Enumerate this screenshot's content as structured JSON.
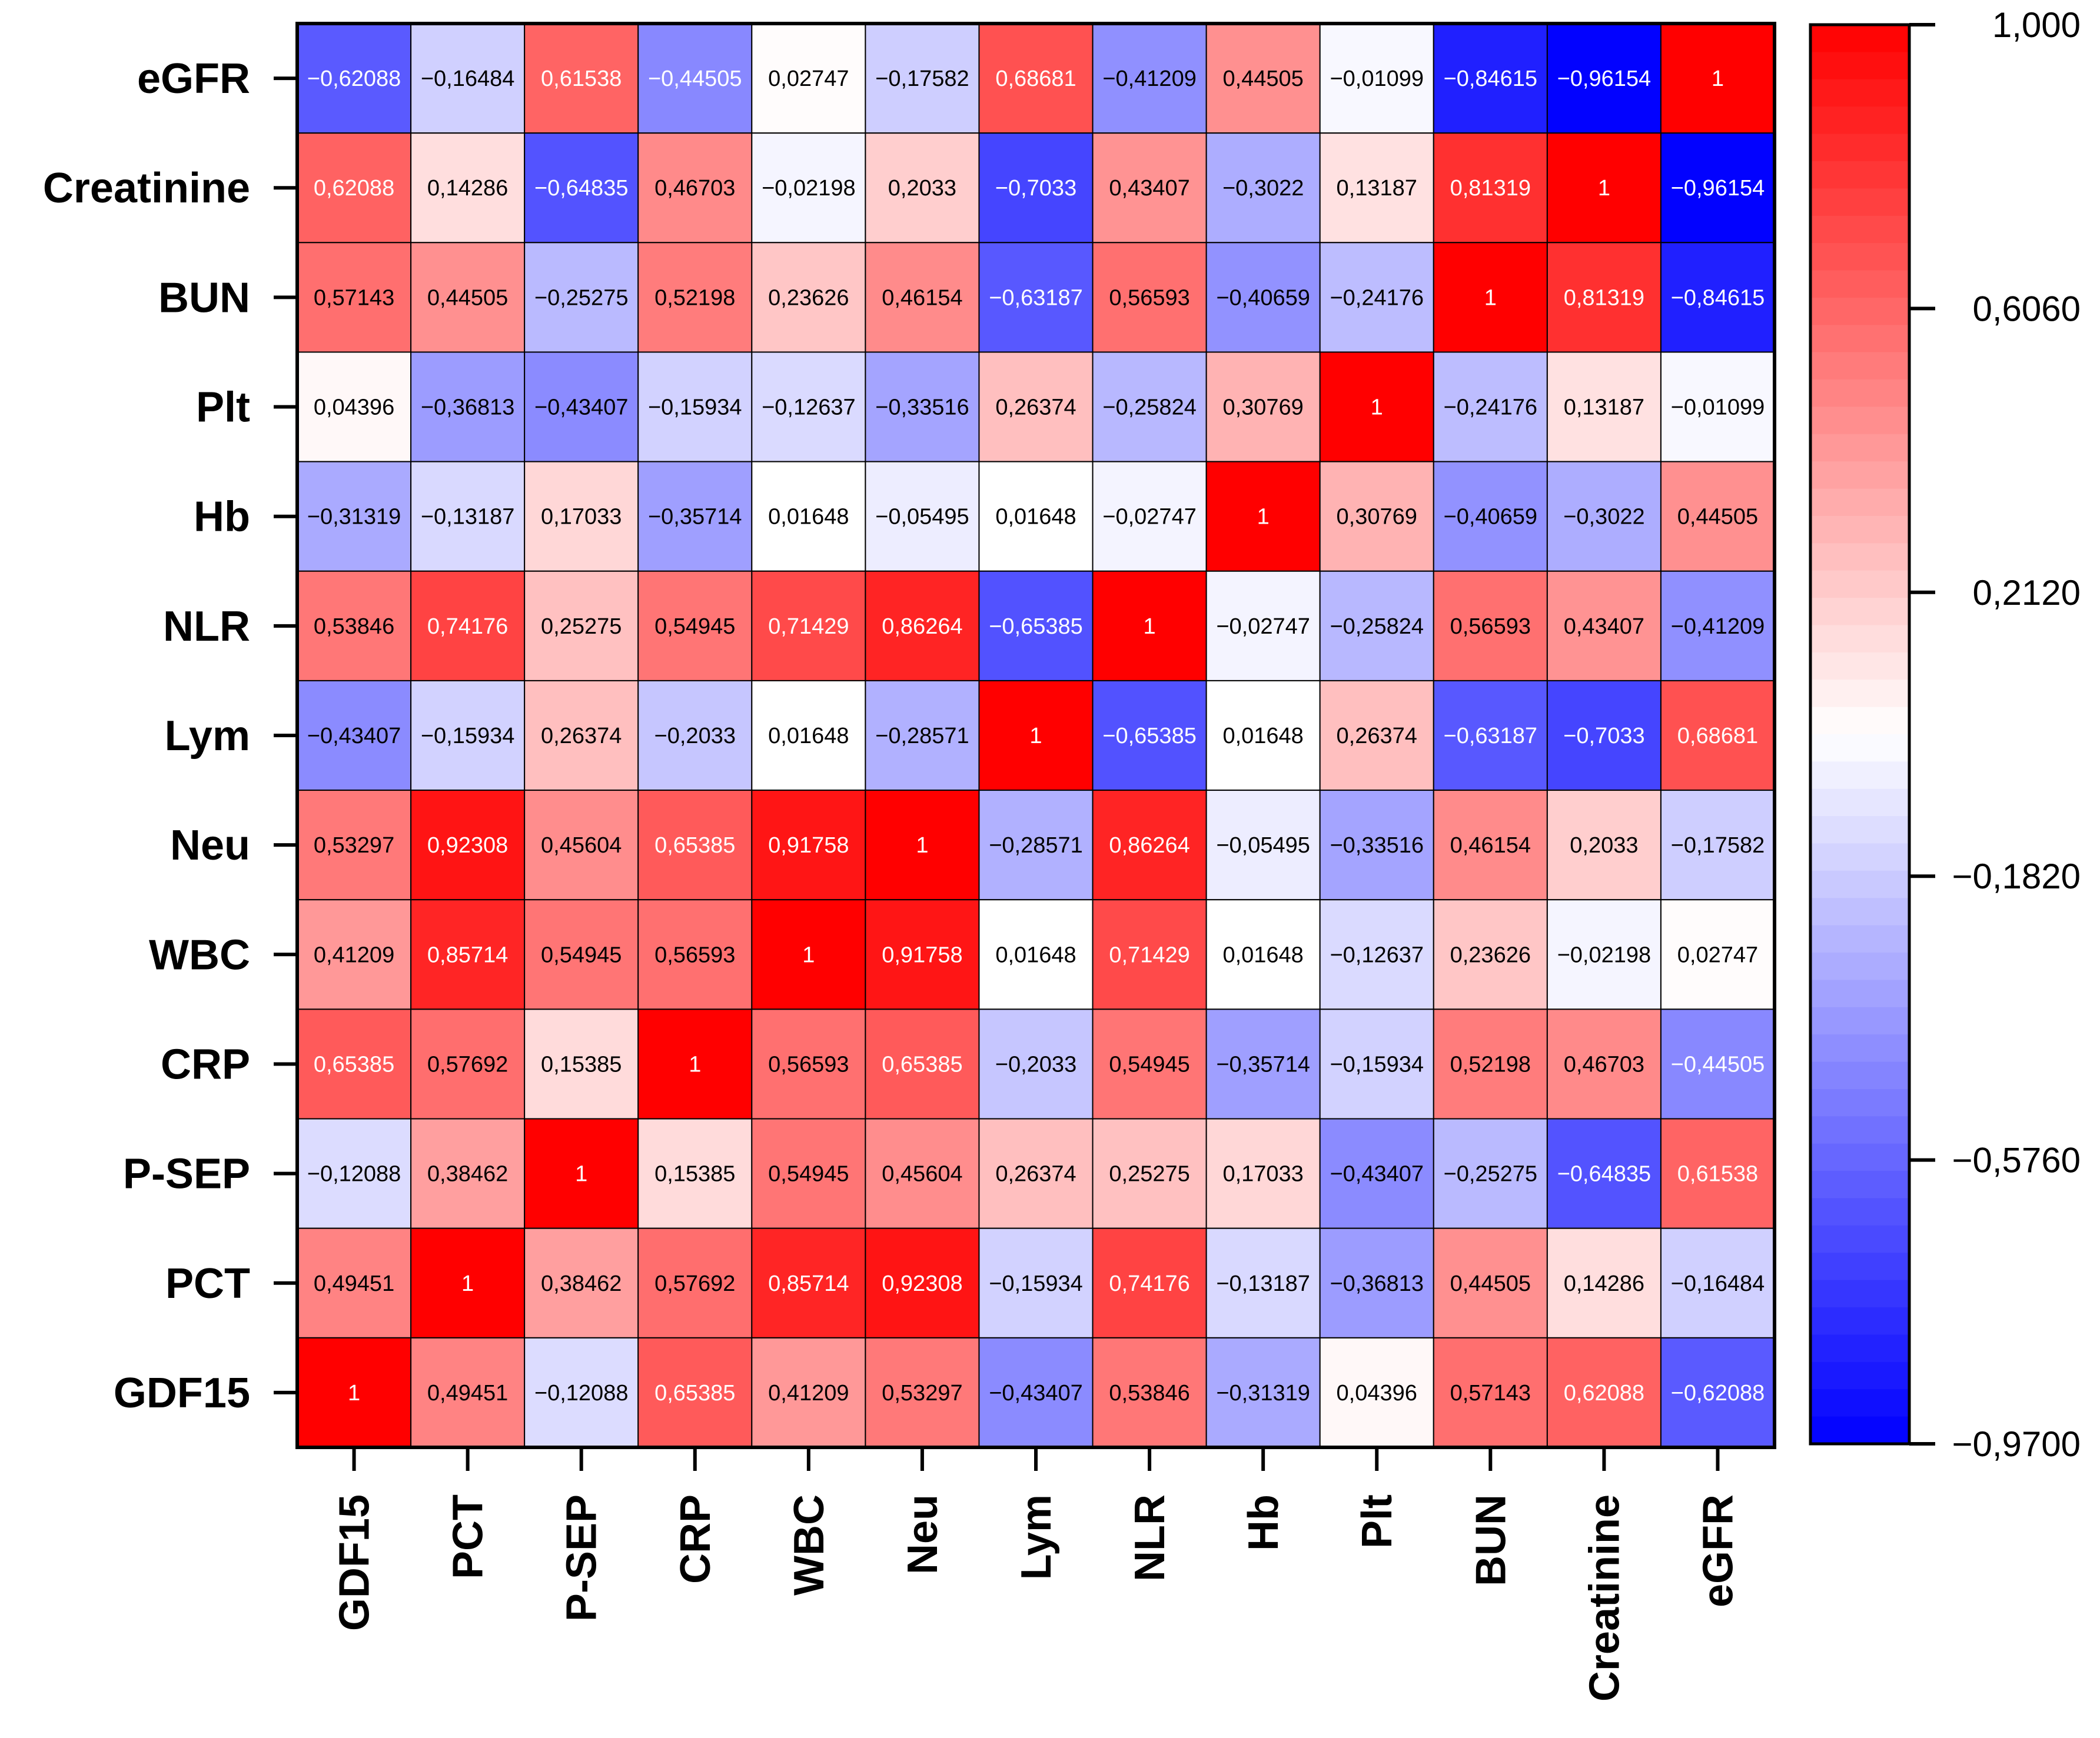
{
  "chart_data": {
    "type": "heatmap",
    "title": "",
    "variables": [
      "GDF15",
      "PCT",
      "P-SEP",
      "CRP",
      "WBC",
      "Neu",
      "Lym",
      "NLR",
      "Hb",
      "Plt",
      "BUN",
      "Creatinine",
      "eGFR"
    ],
    "x_categories": [
      "GDF15",
      "PCT",
      "P-SEP",
      "CRP",
      "WBC",
      "Neu",
      "Lym",
      "NLR",
      "Hb",
      "Plt",
      "BUN",
      "Creatinine",
      "eGFR"
    ],
    "y_categories_top_to_bottom": [
      "eGFR",
      "Creatinine",
      "BUN",
      "Plt",
      "Hb",
      "NLR",
      "Lym",
      "Neu",
      "WBC",
      "CRP",
      "P-SEP",
      "PCT",
      "GDF15"
    ],
    "matrix": [
      [
        "1",
        "0,49451",
        "−0,12088",
        "0,65385",
        "0,41209",
        "0,53297",
        "−0,43407",
        "0,53846",
        "−0,31319",
        "0,04396",
        "0,57143",
        "0,62088",
        "−0,62088"
      ],
      [
        "0,49451",
        "1",
        "0,38462",
        "0,57692",
        "0,85714",
        "0,92308",
        "−0,15934",
        "0,74176",
        "−0,13187",
        "−0,36813",
        "0,44505",
        "0,14286",
        "−0,16484"
      ],
      [
        "−0,12088",
        "0,38462",
        "1",
        "0,15385",
        "0,54945",
        "0,45604",
        "0,26374",
        "0,25275",
        "0,17033",
        "−0,43407",
        "−0,25275",
        "−0,64835",
        "0,61538"
      ],
      [
        "0,65385",
        "0,57692",
        "0,15385",
        "1",
        "0,56593",
        "0,65385",
        "−0,2033",
        "0,54945",
        "−0,35714",
        "−0,15934",
        "0,52198",
        "0,46703",
        "−0,44505"
      ],
      [
        "0,41209",
        "0,85714",
        "0,54945",
        "0,56593",
        "1",
        "0,91758",
        "0,01648",
        "0,71429",
        "0,01648",
        "−0,12637",
        "0,23626",
        "−0,02198",
        "0,02747"
      ],
      [
        "0,53297",
        "0,92308",
        "0,45604",
        "0,65385",
        "0,91758",
        "1",
        "−0,28571",
        "0,86264",
        "−0,05495",
        "−0,33516",
        "0,46154",
        "0,2033",
        "−0,17582"
      ],
      [
        "−0,43407",
        "−0,15934",
        "0,26374",
        "−0,2033",
        "0,01648",
        "−0,28571",
        "1",
        "−0,65385",
        "0,01648",
        "0,26374",
        "−0,63187",
        "−0,7033",
        "0,68681"
      ],
      [
        "0,53846",
        "0,74176",
        "0,25275",
        "0,54945",
        "0,71429",
        "0,86264",
        "−0,65385",
        "1",
        "−0,02747",
        "−0,25824",
        "0,56593",
        "0,43407",
        "−0,41209"
      ],
      [
        "−0,31319",
        "−0,13187",
        "0,17033",
        "−0,35714",
        "0,01648",
        "−0,05495",
        "0,01648",
        "−0,02747",
        "1",
        "0,30769",
        "−0,40659",
        "−0,3022",
        "0,44505"
      ],
      [
        "0,04396",
        "−0,36813",
        "−0,43407",
        "−0,15934",
        "−0,12637",
        "−0,33516",
        "0,26374",
        "−0,25824",
        "0,30769",
        "1",
        "−0,24176",
        "0,13187",
        "−0,01099"
      ],
      [
        "0,57143",
        "0,44505",
        "−0,25275",
        "0,52198",
        "0,23626",
        "0,46154",
        "−0,63187",
        "0,56593",
        "−0,40659",
        "−0,24176",
        "1",
        "0,81319",
        "−0,84615"
      ],
      [
        "0,62088",
        "0,14286",
        "−0,64835",
        "0,46703",
        "−0,02198",
        "0,2033",
        "−0,7033",
        "0,43407",
        "−0,3022",
        "0,13187",
        "0,81319",
        "1",
        "−0,96154"
      ],
      [
        "−0,62088",
        "−0,16484",
        "0,61538",
        "−0,44505",
        "0,02747",
        "−0,17582",
        "0,68681",
        "−0,41209",
        "0,44505",
        "−0,01099",
        "−0,84615",
        "−0,96154",
        "1"
      ]
    ],
    "colorbar": {
      "min": -0.97,
      "max": 1.0,
      "tick_labels_top_to_bottom": [
        "1,000",
        "0,6060",
        "0,2120",
        "−0,1820",
        "−0,5760",
        "−0,9700"
      ],
      "low_color": "#0000ff",
      "mid_color": "#ffffff",
      "high_color": "#ff0000",
      "mid_value": 0.015
    }
  }
}
